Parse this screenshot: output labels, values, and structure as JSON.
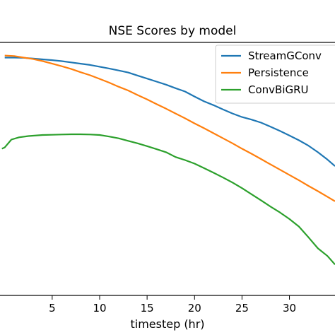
{
  "chart_data": {
    "type": "line",
    "title": "NSE Scores by model",
    "xlabel": "timestep (hr)",
    "ylabel": "",
    "xlim": [
      -0.5,
      34.8
    ],
    "ylim": [
      0.0,
      1.0
    ],
    "x_ticks": [
      5,
      10,
      15,
      20,
      25,
      30
    ],
    "grid": false,
    "legend_position": "top-right",
    "series": [
      {
        "name": "StreamGConv",
        "color": "#1f77b4",
        "x": [
          0,
          1,
          2,
          3,
          4,
          5,
          6,
          7,
          8,
          9,
          10,
          11,
          12,
          13,
          14,
          15,
          16,
          17,
          18,
          19,
          20,
          21,
          22,
          23,
          24,
          25,
          26,
          27,
          28,
          29,
          30,
          31,
          32,
          33,
          34,
          34.8
        ],
        "y": [
          0.94,
          0.94,
          0.939,
          0.936,
          0.933,
          0.93,
          0.926,
          0.921,
          0.916,
          0.911,
          0.904,
          0.897,
          0.889,
          0.881,
          0.869,
          0.857,
          0.845,
          0.833,
          0.819,
          0.806,
          0.786,
          0.767,
          0.752,
          0.735,
          0.719,
          0.705,
          0.695,
          0.683,
          0.667,
          0.65,
          0.632,
          0.613,
          0.592,
          0.566,
          0.537,
          0.511
        ]
      },
      {
        "name": "Persistence",
        "color": "#ff7f0e",
        "x": [
          0,
          1,
          2,
          3,
          4,
          5,
          6,
          7,
          8,
          9,
          10,
          11,
          12,
          13,
          14,
          15,
          16,
          17,
          18,
          19,
          20,
          21,
          22,
          23,
          24,
          25,
          26,
          27,
          28,
          29,
          30,
          31,
          32,
          33,
          34,
          34.8
        ],
        "y": [
          0.948,
          0.946,
          0.94,
          0.934,
          0.926,
          0.916,
          0.906,
          0.895,
          0.882,
          0.87,
          0.856,
          0.841,
          0.825,
          0.81,
          0.792,
          0.775,
          0.756,
          0.738,
          0.719,
          0.7,
          0.68,
          0.661,
          0.641,
          0.621,
          0.601,
          0.58,
          0.56,
          0.539,
          0.518,
          0.497,
          0.476,
          0.455,
          0.433,
          0.412,
          0.39,
          0.372
        ]
      },
      {
        "name": "ConvBiGRU",
        "color": "#2ca02c",
        "x": [
          -0.3,
          0,
          0.7,
          1.5,
          2.5,
          4,
          5,
          6,
          7,
          8,
          9,
          10,
          11,
          12,
          13,
          14,
          15,
          16,
          17,
          18,
          19,
          20,
          21,
          22,
          23,
          24,
          25,
          26,
          27,
          28,
          29,
          30,
          31,
          32,
          33,
          34,
          34.8
        ],
        "y": [
          0.58,
          0.585,
          0.616,
          0.625,
          0.63,
          0.634,
          0.635,
          0.636,
          0.637,
          0.637,
          0.636,
          0.634,
          0.628,
          0.621,
          0.611,
          0.601,
          0.59,
          0.578,
          0.566,
          0.547,
          0.535,
          0.521,
          0.503,
          0.485,
          0.466,
          0.446,
          0.424,
          0.4,
          0.376,
          0.351,
          0.328,
          0.302,
          0.272,
          0.23,
          0.186,
          0.156,
          0.122
        ]
      }
    ]
  }
}
